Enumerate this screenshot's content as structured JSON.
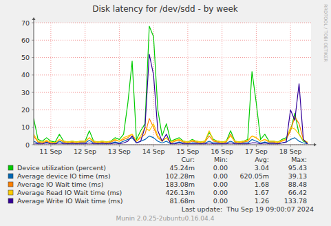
{
  "chart_data": {
    "type": "line",
    "title": "Disk latency for /dev/sdd - by week",
    "x": [
      11,
      11.125,
      11.25,
      11.375,
      11.5,
      11.625,
      11.75,
      11.875,
      12,
      12.125,
      12.25,
      12.375,
      12.5,
      12.625,
      12.75,
      12.875,
      13,
      13.125,
      13.25,
      13.375,
      13.5,
      13.625,
      13.75,
      13.875,
      14,
      14.125,
      14.25,
      14.375,
      14.5,
      14.625,
      14.75,
      14.875,
      15,
      15.125,
      15.25,
      15.375,
      15.5,
      15.625,
      15.75,
      15.875,
      16,
      16.125,
      16.25,
      16.375,
      16.5,
      16.625,
      16.75,
      16.875,
      17,
      17.125,
      17.25,
      17.375,
      17.5,
      17.625,
      17.75,
      17.875,
      18,
      18.125,
      18.25,
      18.375,
      18.5,
      18.625,
      18.75,
      18.875,
      19
    ],
    "xlim": [
      11,
      19.1
    ],
    "xticks": [
      {
        "value": 11.5,
        "label": "11 Sep"
      },
      {
        "value": 12.5,
        "label": "12 Sep"
      },
      {
        "value": 13.5,
        "label": "13 Sep"
      },
      {
        "value": 14.5,
        "label": "14 Sep"
      },
      {
        "value": 15.5,
        "label": "15 Sep"
      },
      {
        "value": 16.5,
        "label": "16 Sep"
      },
      {
        "value": 17.5,
        "label": "17 Sep"
      },
      {
        "value": 18.5,
        "label": "18 Sep"
      }
    ],
    "ylim": [
      0,
      70
    ],
    "yticks": [
      0,
      10,
      20,
      30,
      40,
      50,
      60,
      70
    ],
    "grid": true,
    "legend": "bottom",
    "stat_headers": [
      "Cur:",
      "Min:",
      "Avg:",
      "Max:"
    ],
    "series": [
      {
        "name": "Device utilization (percent)",
        "color": "#00cc00",
        "values": [
          15,
          3,
          2,
          4,
          2,
          1.5,
          6,
          2,
          1.5,
          2,
          1.5,
          2,
          2,
          8,
          2,
          1.5,
          2,
          1.5,
          2,
          4,
          3,
          6,
          24,
          48,
          3,
          8,
          12,
          68,
          62,
          20,
          5,
          12,
          2,
          3,
          4,
          2,
          1.5,
          3,
          2,
          1.5,
          2,
          7,
          3,
          2,
          1.5,
          2,
          8,
          2,
          1.5,
          2,
          3,
          42,
          24,
          3,
          6,
          2,
          2,
          1.5,
          3,
          4,
          8,
          18,
          6,
          2,
          1
        ],
        "cur": {
          "value": 0.04524,
          "label": "45.24m"
        },
        "min": {
          "value": 0,
          "label": "0.00"
        },
        "avg": 3.04,
        "max": 95.43
      },
      {
        "name": "Average device IO time (ms)",
        "color": "#0066b3",
        "values": [
          2,
          1,
          1,
          1.5,
          1,
          0.5,
          2,
          1,
          0.5,
          1,
          0.5,
          1,
          1,
          2.5,
          1,
          0.5,
          1,
          0.5,
          1,
          1.5,
          1,
          2,
          3,
          4,
          1,
          2,
          3,
          5,
          4,
          2,
          1,
          2,
          0.5,
          1,
          1.5,
          1,
          0.5,
          1,
          1,
          0.5,
          1,
          2,
          1,
          1,
          0.5,
          1,
          2,
          1,
          0.5,
          1,
          1,
          3,
          2,
          1,
          1.5,
          1,
          1,
          0.5,
          1,
          1.5,
          3,
          4,
          2,
          1,
          0.5
        ],
        "cur": {
          "value": 0.10228,
          "label": "102.28m"
        },
        "min": {
          "value": 0,
          "label": "0.00"
        },
        "avg": {
          "value": 0.62005,
          "label": "620.05m"
        },
        "max": 39.13
      },
      {
        "name": "Average IO Wait time (ms)",
        "color": "#ff8000",
        "values": [
          5,
          1.5,
          1,
          2,
          1,
          1,
          3,
          1.5,
          1,
          1.5,
          1,
          1.5,
          1.5,
          4,
          1.5,
          1,
          1.5,
          1,
          1.5,
          2.5,
          2,
          3,
          4,
          6,
          2,
          4,
          6,
          15,
          10,
          4,
          2,
          4,
          1,
          2,
          2.5,
          1.5,
          1,
          2,
          1.5,
          1,
          1.5,
          5,
          2,
          1.5,
          1,
          1.5,
          6,
          1.5,
          1,
          1.5,
          2,
          5,
          4,
          2,
          3,
          1.5,
          1.5,
          1,
          2,
          3,
          8,
          16,
          12,
          3,
          1
        ],
        "cur": {
          "value": 0.18308,
          "label": "183.08m"
        },
        "min": {
          "value": 0,
          "label": "0.00"
        },
        "avg": 1.68,
        "max": 88.48
      },
      {
        "name": "Average Read IO Wait time (ms)",
        "color": "#ffcc00",
        "values": [
          6,
          2,
          1.5,
          2.5,
          1.5,
          1,
          3,
          2,
          1.5,
          2,
          1.5,
          2,
          2,
          4,
          2,
          1.5,
          2,
          1.5,
          2,
          3,
          2,
          4,
          5,
          6,
          2,
          5,
          10,
          8,
          12,
          5,
          2,
          4,
          1.5,
          2.5,
          3,
          2,
          1.5,
          2.5,
          2,
          1.5,
          2,
          8,
          2.5,
          2,
          1.5,
          2,
          5,
          2,
          1.5,
          2,
          2.5,
          5,
          4,
          2,
          3,
          2,
          2,
          1.5,
          2.5,
          3,
          10,
          9,
          6,
          2.5,
          1.5
        ],
        "cur": {
          "value": 0.42613,
          "label": "426.13m"
        },
        "min": {
          "value": 0,
          "label": "0.00"
        },
        "avg": 1.67,
        "max": 66.42
      },
      {
        "name": "Average Write IO Wait time (ms)",
        "color": "#330099",
        "values": [
          1,
          0.5,
          0.5,
          1,
          0.5,
          0.5,
          1,
          0.5,
          0.5,
          0.5,
          0.5,
          0.5,
          0.5,
          1,
          0.5,
          0.5,
          0.5,
          0.5,
          0.5,
          1,
          0.5,
          1,
          2,
          5,
          1,
          2,
          10,
          52,
          40,
          8,
          2,
          6,
          0.5,
          0.5,
          1,
          0.5,
          0.5,
          0.5,
          0.5,
          0.5,
          0.5,
          1,
          0.5,
          0.5,
          0.5,
          0.5,
          1,
          0.5,
          0.5,
          0.5,
          0.5,
          1,
          1,
          0.5,
          1,
          0.5,
          0.5,
          0.5,
          1,
          1.5,
          20,
          14,
          35,
          3,
          0.5
        ],
        "cur": {
          "value": 0.08168,
          "label": "81.68m"
        },
        "min": {
          "value": 0,
          "label": "0.00"
        },
        "avg": 1.26,
        "max": 133.78
      }
    ],
    "last_update": "Last update:  Thu Sep 19 09:00:07 2024",
    "footer": "Munin 2.0.25-2ubuntu0.16.04.4",
    "watermark": "RRDTOOL / TOBI OETIKER"
  }
}
